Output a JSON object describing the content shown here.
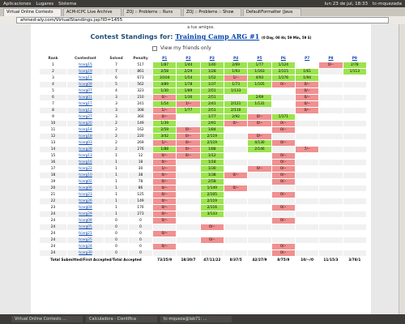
{
  "panel": {
    "menus": [
      "Aplicaciones",
      "Lugares",
      "Sistema"
    ],
    "clock": "lun 23 de jul, 18:33",
    "user": "tc-mquezada"
  },
  "tabs": [
    "Virtual Online Contests",
    "ACM-ICPC Live Archive",
    "ZOJ :: Problems :: Runs",
    "ZOJ :: Problems :: Show",
    "DefaultFormatter (Java"
  ],
  "url": "ahmed-aly.com/VirtualStandings.jsp?ID=1455",
  "note": "a tus amigos.",
  "heading": {
    "prefix": "Contest Standings for:",
    "contest": "Training Camp ARG #1",
    "remaining": "(0 Day, 00 Hr, 59 Min, 59 S)"
  },
  "filter": "View my friends only",
  "table": {
    "header": [
      "Rank",
      "Contestant",
      "Solved",
      "Penalty",
      "P1",
      "P2",
      "P3",
      "P4",
      "P5",
      "P6",
      "P7",
      "P8",
      "P9"
    ],
    "rows": [
      [
        "1",
        "tcarg15",
        "7",
        "517",
        "1/87",
        "1/44",
        "1/40",
        "2/69",
        "1/77",
        "1/124",
        null,
        "0/--",
        "2/78"
      ],
      [
        "2",
        "tcarg19",
        "7",
        "861",
        "2/58",
        "2/29",
        "1/28",
        "1/93",
        "1/163",
        "2/115",
        "1/61",
        null,
        "1/113"
      ],
      [
        "3",
        "tcarg11",
        "6",
        "673",
        "3/104",
        "1/54",
        "1/52",
        "1/--",
        "4/93",
        "1/176",
        "1/94",
        null,
        null
      ],
      [
        "4",
        "tcarg09",
        "5",
        "562",
        "4/89",
        "1/78",
        "1/37",
        "1/73",
        "1/105",
        "0/--",
        "0/--",
        null,
        null
      ],
      [
        "5",
        "tcarg07",
        "4",
        "323",
        "1/30",
        "1/89",
        "2/51",
        "1/133",
        null,
        null,
        "0/--",
        null,
        null
      ],
      [
        "6",
        "tcarg01",
        "3",
        "210",
        "0/--",
        "1/30",
        "2/51",
        null,
        "2/69",
        null,
        "0/--",
        null,
        null
      ],
      [
        "7",
        "tcarg17",
        "3",
        "241",
        "1/54",
        "1/--",
        "2/41",
        "2/121",
        "1/131",
        null,
        "0/--",
        null,
        null
      ],
      [
        "8",
        "tcarg12",
        "3",
        "308",
        "1/--",
        "1/77",
        "2/51",
        "2/110",
        null,
        null,
        "0/--",
        null,
        null
      ],
      [
        "9",
        "tcarg27",
        "3",
        "360",
        "0/--",
        null,
        "1/77",
        "2/92",
        "0/--",
        "1/171",
        null,
        null,
        null
      ],
      [
        "10",
        "tcarg20",
        "2",
        "149",
        "1/39",
        null,
        "2/91",
        "0/--",
        "0/--",
        "0/--",
        null,
        null,
        null
      ],
      [
        "11",
        "tcarg14",
        "2",
        "162",
        "2/59",
        "0/--",
        "1/84",
        null,
        null,
        "0/--",
        null,
        null,
        null
      ],
      [
        "12",
        "tcarg18",
        "2",
        "220",
        "3/42",
        "0/--",
        "2/119",
        null,
        "0/--",
        null,
        null,
        null,
        null
      ],
      [
        "13",
        "tcarg03",
        "2",
        "269",
        "1/--",
        "0/--",
        "2/119",
        null,
        "4/130",
        "0/--",
        null,
        null,
        null
      ],
      [
        "14",
        "tcarg28",
        "2",
        "276",
        "1/88",
        "0/--",
        "1/88",
        null,
        "2/146",
        null,
        "7/--",
        null,
        null
      ],
      [
        "15",
        "tcarg13",
        "1",
        "12",
        "0/--",
        "0/--",
        "1/12",
        null,
        null,
        "0/--",
        null,
        null,
        null
      ],
      [
        "16",
        "tcarg16",
        "1",
        "18",
        "0/--",
        null,
        "1/18",
        null,
        null,
        "0/--",
        null,
        null,
        null
      ],
      [
        "17",
        "tcarg22",
        "1",
        "30",
        "1/--",
        null,
        "1/30",
        null,
        "0/--",
        "0/--",
        null,
        null,
        null
      ],
      [
        "18",
        "tcarg10",
        "1",
        "38",
        "0/--",
        null,
        "1/38",
        "0/--",
        null,
        "0/--",
        null,
        null,
        null
      ],
      [
        "19",
        "tcarg02",
        "1",
        "78",
        "0/--",
        null,
        "2/58",
        null,
        null,
        "0/--",
        null,
        null,
        null
      ],
      [
        "20",
        "tcarg06",
        "1",
        "86",
        "0/--",
        null,
        "1/149",
        "0/--",
        null,
        null,
        null,
        null,
        null
      ],
      [
        "21",
        "tcarg23",
        "1",
        "125",
        "0/--",
        null,
        "2/105",
        null,
        null,
        "0/--",
        null,
        null,
        null
      ],
      [
        "22",
        "tcarg26",
        "1",
        "149",
        "0/--",
        null,
        "2/119",
        null,
        null,
        null,
        null,
        null,
        null
      ],
      [
        "23",
        "tcarg04",
        "1",
        "176",
        "0/--",
        null,
        "2/116",
        null,
        null,
        "0/--",
        null,
        null,
        null
      ],
      [
        "24",
        "tcarg29",
        "1",
        "273",
        "0/--",
        null,
        "3/133",
        null,
        null,
        null,
        null,
        null,
        null
      ],
      [
        "24",
        "tcarg08",
        "0",
        "0",
        "0/--",
        null,
        null,
        null,
        null,
        "0/--",
        null,
        null,
        null
      ],
      [
        "24",
        "tcarg05",
        "0",
        "0",
        null,
        null,
        "0/--",
        null,
        null,
        null,
        null,
        null,
        null
      ],
      [
        "24",
        "tcarg21",
        "0",
        "0",
        "0/--",
        null,
        null,
        null,
        null,
        null,
        null,
        null,
        null
      ],
      [
        "24",
        "tcarg25",
        "0",
        "0",
        null,
        null,
        "0/--",
        null,
        null,
        null,
        null,
        null,
        null
      ],
      [
        "24",
        "tcarg24",
        "0",
        "0",
        "0/--",
        null,
        null,
        null,
        null,
        "0/--",
        null,
        null,
        null
      ],
      [
        "24",
        "tcarg30",
        "0",
        "0",
        null,
        null,
        null,
        null,
        null,
        "0/--",
        null,
        null,
        null
      ]
    ],
    "footer_label": "Total Submitted/First Accepted/Total Accepted",
    "footer": [
      "73/25/9",
      "18/20/7",
      "47/11/22",
      "8/37/5",
      "42/27/9",
      "8/75/9",
      "10/--/0",
      "11/15/3",
      "3/78/1"
    ]
  },
  "taskbar": [
    "Virtual Online Contests ...",
    "Calculadora - Científica",
    "tc-mqueza@lab71: ..."
  ]
}
